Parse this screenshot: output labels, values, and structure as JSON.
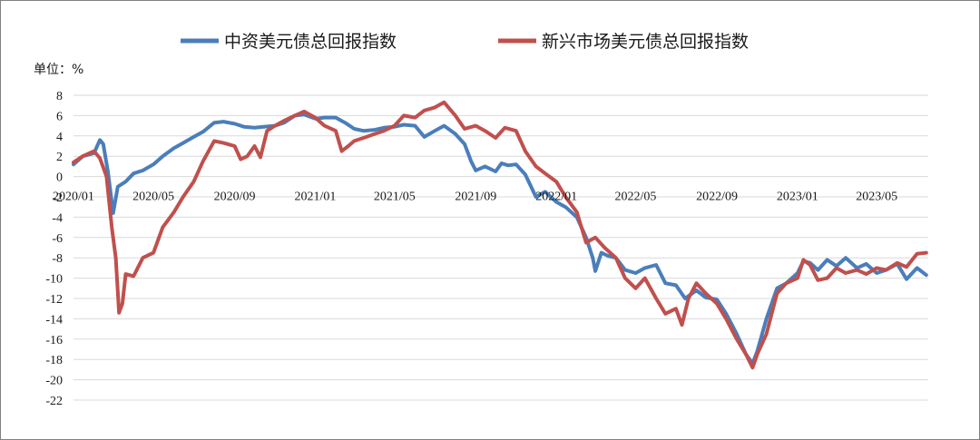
{
  "chart_data": {
    "type": "line",
    "unit_label": "单位：%",
    "yticks": [
      8,
      6,
      4,
      2,
      0,
      -2,
      -4,
      -6,
      -8,
      -10,
      -12,
      -14,
      -16,
      -18,
      -20,
      -22
    ],
    "ylim": [
      -22,
      8
    ],
    "xticks": [
      "2020/01",
      "2020/05",
      "2020/09",
      "2021/01",
      "2021/05",
      "2021/09",
      "2022/01",
      "2022/05",
      "2022/09",
      "2023/01",
      "2023/05"
    ],
    "legend_position": "top",
    "grid": true,
    "series": [
      {
        "name": "中资美元债总回报指数",
        "color": "#4a7ebb",
        "points": [
          [
            "2020/01/01",
            1.2
          ],
          [
            "2020/01/15",
            2.0
          ],
          [
            "2020/02/01",
            2.3
          ],
          [
            "2020/02/10",
            3.6
          ],
          [
            "2020/02/15",
            3.2
          ],
          [
            "2020/02/22",
            0.5
          ],
          [
            "2020/03/01",
            -3.6
          ],
          [
            "2020/03/08",
            -1.0
          ],
          [
            "2020/03/20",
            -0.5
          ],
          [
            "2020/04/01",
            0.3
          ],
          [
            "2020/04/15",
            0.6
          ],
          [
            "2020/05/01",
            1.2
          ],
          [
            "2020/05/15",
            2.0
          ],
          [
            "2020/06/01",
            2.8
          ],
          [
            "2020/06/15",
            3.3
          ],
          [
            "2020/07/01",
            3.9
          ],
          [
            "2020/07/15",
            4.4
          ],
          [
            "2020/08/01",
            5.3
          ],
          [
            "2020/08/15",
            5.4
          ],
          [
            "2020/09/01",
            5.2
          ],
          [
            "2020/09/15",
            4.9
          ],
          [
            "2020/10/01",
            4.8
          ],
          [
            "2020/10/15",
            4.9
          ],
          [
            "2020/11/01",
            5.0
          ],
          [
            "2020/11/15",
            5.3
          ],
          [
            "2020/12/01",
            6.0
          ],
          [
            "2020/12/15",
            6.1
          ],
          [
            "2021/01/01",
            5.7
          ],
          [
            "2021/01/15",
            5.8
          ],
          [
            "2021/02/01",
            5.8
          ],
          [
            "2021/02/15",
            5.3
          ],
          [
            "2021/03/01",
            4.7
          ],
          [
            "2021/03/15",
            4.5
          ],
          [
            "2021/04/01",
            4.6
          ],
          [
            "2021/04/15",
            4.8
          ],
          [
            "2021/05/01",
            4.9
          ],
          [
            "2021/05/15",
            5.1
          ],
          [
            "2021/06/01",
            5.0
          ],
          [
            "2021/06/15",
            3.9
          ],
          [
            "2021/07/01",
            4.5
          ],
          [
            "2021/07/15",
            5.0
          ],
          [
            "2021/08/01",
            4.2
          ],
          [
            "2021/08/15",
            3.2
          ],
          [
            "2021/08/25",
            1.5
          ],
          [
            "2021/09/01",
            0.6
          ],
          [
            "2021/09/15",
            1.0
          ],
          [
            "2021/10/01",
            0.5
          ],
          [
            "2021/10/10",
            1.3
          ],
          [
            "2021/10/20",
            1.1
          ],
          [
            "2021/11/01",
            1.2
          ],
          [
            "2021/11/15",
            0.2
          ],
          [
            "2021/12/01",
            -2.0
          ],
          [
            "2021/12/15",
            -1.5
          ],
          [
            "2022/01/01",
            -2.5
          ],
          [
            "2022/01/15",
            -3.0
          ],
          [
            "2022/02/01",
            -4.0
          ],
          [
            "2022/02/15",
            -6.0
          ],
          [
            "2022/02/25",
            -8.0
          ],
          [
            "2022/03/01",
            -9.3
          ],
          [
            "2022/03/10",
            -7.5
          ],
          [
            "2022/03/20",
            -7.8
          ],
          [
            "2022/04/01",
            -8.0
          ],
          [
            "2022/04/15",
            -9.2
          ],
          [
            "2022/05/01",
            -9.5
          ],
          [
            "2022/05/15",
            -9.0
          ],
          [
            "2022/06/01",
            -8.7
          ],
          [
            "2022/06/15",
            -10.5
          ],
          [
            "2022/07/01",
            -10.7
          ],
          [
            "2022/07/15",
            -12.0
          ],
          [
            "2022/08/01",
            -11.2
          ],
          [
            "2022/08/15",
            -11.9
          ],
          [
            "2022/09/01",
            -12.1
          ],
          [
            "2022/09/15",
            -13.5
          ],
          [
            "2022/10/01",
            -15.5
          ],
          [
            "2022/10/15",
            -17.5
          ],
          [
            "2022/10/25",
            -18.4
          ],
          [
            "2022/11/01",
            -17.2
          ],
          [
            "2022/11/15",
            -14.0
          ],
          [
            "2022/12/01",
            -11.0
          ],
          [
            "2022/12/15",
            -10.5
          ],
          [
            "2023/01/01",
            -9.5
          ],
          [
            "2023/01/10",
            -8.3
          ],
          [
            "2023/01/20",
            -8.5
          ],
          [
            "2023/02/01",
            -9.2
          ],
          [
            "2023/02/15",
            -8.2
          ],
          [
            "2023/03/01",
            -8.8
          ],
          [
            "2023/03/15",
            -8.0
          ],
          [
            "2023/04/01",
            -9.0
          ],
          [
            "2023/04/15",
            -8.6
          ],
          [
            "2023/05/01",
            -9.5
          ],
          [
            "2023/05/15",
            -9.2
          ],
          [
            "2023/06/01",
            -8.6
          ],
          [
            "2023/06/15",
            -10.1
          ],
          [
            "2023/07/01",
            -9.0
          ],
          [
            "2023/07/15",
            -9.7
          ]
        ]
      },
      {
        "name": "新兴市场美元债总回报指数",
        "color": "#c0504d",
        "points": [
          [
            "2020/01/01",
            1.4
          ],
          [
            "2020/01/15",
            2.0
          ],
          [
            "2020/02/01",
            2.5
          ],
          [
            "2020/02/10",
            1.8
          ],
          [
            "2020/02/20",
            0.0
          ],
          [
            "2020/02/28",
            -5.0
          ],
          [
            "2020/03/05",
            -8.0
          ],
          [
            "2020/03/10",
            -13.4
          ],
          [
            "2020/03/15",
            -12.5
          ],
          [
            "2020/03/20",
            -9.6
          ],
          [
            "2020/04/01",
            -9.8
          ],
          [
            "2020/04/15",
            -8.0
          ],
          [
            "2020/05/01",
            -7.5
          ],
          [
            "2020/05/15",
            -5.0
          ],
          [
            "2020/06/01",
            -3.5
          ],
          [
            "2020/06/15",
            -2.0
          ],
          [
            "2020/07/01",
            -0.5
          ],
          [
            "2020/07/15",
            1.5
          ],
          [
            "2020/08/01",
            3.5
          ],
          [
            "2020/08/15",
            3.3
          ],
          [
            "2020/09/01",
            3.0
          ],
          [
            "2020/09/10",
            1.7
          ],
          [
            "2020/09/20",
            2.0
          ],
          [
            "2020/10/01",
            3.0
          ],
          [
            "2020/10/10",
            1.9
          ],
          [
            "2020/10/20",
            4.5
          ],
          [
            "2020/11/01",
            5.0
          ],
          [
            "2020/11/15",
            5.5
          ],
          [
            "2020/12/01",
            6.0
          ],
          [
            "2020/12/15",
            6.4
          ],
          [
            "2021/01/01",
            5.8
          ],
          [
            "2021/01/15",
            5.0
          ],
          [
            "2021/02/01",
            4.5
          ],
          [
            "2021/02/10",
            2.5
          ],
          [
            "2021/02/20",
            3.0
          ],
          [
            "2021/03/01",
            3.5
          ],
          [
            "2021/03/15",
            3.8
          ],
          [
            "2021/04/01",
            4.2
          ],
          [
            "2021/04/15",
            4.5
          ],
          [
            "2021/05/01",
            5.0
          ],
          [
            "2021/05/15",
            6.0
          ],
          [
            "2021/06/01",
            5.8
          ],
          [
            "2021/06/15",
            6.5
          ],
          [
            "2021/07/01",
            6.8
          ],
          [
            "2021/07/15",
            7.3
          ],
          [
            "2021/08/01",
            6.0
          ],
          [
            "2021/08/15",
            4.7
          ],
          [
            "2021/09/01",
            5.0
          ],
          [
            "2021/09/15",
            4.5
          ],
          [
            "2021/10/01",
            3.8
          ],
          [
            "2021/10/15",
            4.8
          ],
          [
            "2021/11/01",
            4.5
          ],
          [
            "2021/11/15",
            2.5
          ],
          [
            "2021/12/01",
            1.0
          ],
          [
            "2021/12/15",
            0.3
          ],
          [
            "2022/01/01",
            -0.5
          ],
          [
            "2022/01/15",
            -2.0
          ],
          [
            "2022/02/01",
            -3.5
          ],
          [
            "2022/02/15",
            -6.5
          ],
          [
            "2022/03/01",
            -6.0
          ],
          [
            "2022/03/15",
            -7.0
          ],
          [
            "2022/04/01",
            -8.0
          ],
          [
            "2022/04/15",
            -10.0
          ],
          [
            "2022/05/01",
            -11.0
          ],
          [
            "2022/05/15",
            -10.0
          ],
          [
            "2022/06/01",
            -12.0
          ],
          [
            "2022/06/15",
            -13.5
          ],
          [
            "2022/07/01",
            -13.0
          ],
          [
            "2022/07/10",
            -14.6
          ],
          [
            "2022/07/20",
            -12.0
          ],
          [
            "2022/08/01",
            -10.5
          ],
          [
            "2022/08/15",
            -11.5
          ],
          [
            "2022/09/01",
            -12.5
          ],
          [
            "2022/09/15",
            -14.0
          ],
          [
            "2022/10/01",
            -16.0
          ],
          [
            "2022/10/15",
            -17.5
          ],
          [
            "2022/10/25",
            -18.8
          ],
          [
            "2022/11/01",
            -17.5
          ],
          [
            "2022/11/15",
            -15.5
          ],
          [
            "2022/12/01",
            -11.5
          ],
          [
            "2022/12/15",
            -10.5
          ],
          [
            "2023/01/01",
            -10.0
          ],
          [
            "2023/01/10",
            -8.2
          ],
          [
            "2023/01/20",
            -8.7
          ],
          [
            "2023/02/01",
            -10.2
          ],
          [
            "2023/02/15",
            -10.0
          ],
          [
            "2023/03/01",
            -9.0
          ],
          [
            "2023/03/15",
            -9.5
          ],
          [
            "2023/04/01",
            -9.2
          ],
          [
            "2023/04/15",
            -9.6
          ],
          [
            "2023/05/01",
            -9.0
          ],
          [
            "2023/05/15",
            -9.2
          ],
          [
            "2023/06/01",
            -8.5
          ],
          [
            "2023/06/15",
            -8.9
          ],
          [
            "2023/07/01",
            -7.6
          ],
          [
            "2023/07/15",
            -7.5
          ]
        ]
      }
    ]
  }
}
